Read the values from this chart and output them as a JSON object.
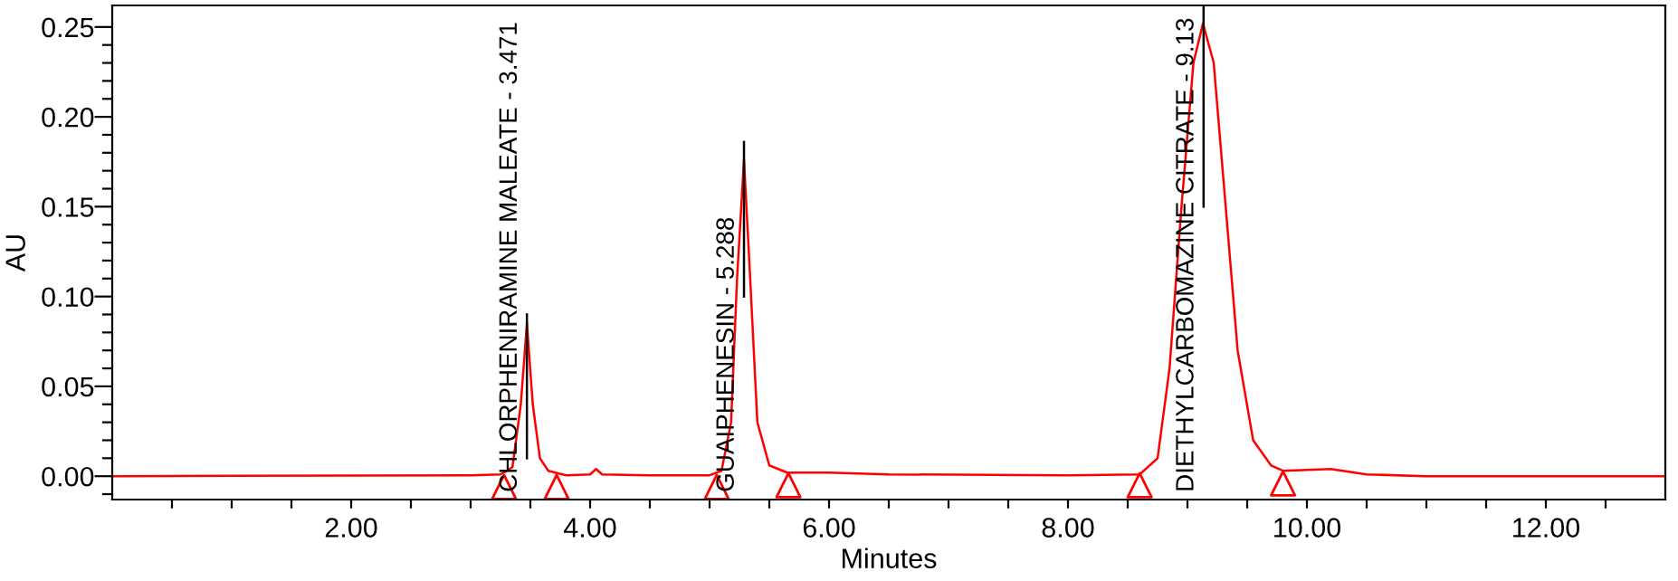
{
  "chart_data": {
    "type": "line",
    "xlabel": "Minutes",
    "ylabel": "AU",
    "xlim": [
      0,
      13
    ],
    "ylim": [
      -0.013,
      0.262
    ],
    "xticks": [
      {
        "value": 0.5,
        "label": null
      },
      {
        "value": 1.0,
        "label": null
      },
      {
        "value": 1.5,
        "label": null
      },
      {
        "value": 2.0,
        "label": "2.00"
      },
      {
        "value": 2.5,
        "label": null
      },
      {
        "value": 3.0,
        "label": null
      },
      {
        "value": 3.5,
        "label": null
      },
      {
        "value": 4.0,
        "label": "4.00"
      },
      {
        "value": 4.5,
        "label": null
      },
      {
        "value": 5.0,
        "label": null
      },
      {
        "value": 5.5,
        "label": null
      },
      {
        "value": 6.0,
        "label": "6.00"
      },
      {
        "value": 6.5,
        "label": null
      },
      {
        "value": 7.0,
        "label": null
      },
      {
        "value": 7.5,
        "label": null
      },
      {
        "value": 8.0,
        "label": "8.00"
      },
      {
        "value": 8.5,
        "label": null
      },
      {
        "value": 9.0,
        "label": null
      },
      {
        "value": 9.5,
        "label": null
      },
      {
        "value": 10.0,
        "label": "10.00"
      },
      {
        "value": 10.5,
        "label": null
      },
      {
        "value": 11.0,
        "label": null
      },
      {
        "value": 11.5,
        "label": null
      },
      {
        "value": 12.0,
        "label": "12.00"
      },
      {
        "value": 12.5,
        "label": null
      }
    ],
    "yticks": [
      {
        "value": -0.01,
        "label": null
      },
      {
        "value": 0.0,
        "label": "0.00"
      },
      {
        "value": 0.01,
        "label": null
      },
      {
        "value": 0.02,
        "label": null
      },
      {
        "value": 0.03,
        "label": null
      },
      {
        "value": 0.04,
        "label": null
      },
      {
        "value": 0.05,
        "label": "0.05"
      },
      {
        "value": 0.06,
        "label": null
      },
      {
        "value": 0.07,
        "label": null
      },
      {
        "value": 0.08,
        "label": null
      },
      {
        "value": 0.09,
        "label": null
      },
      {
        "value": 0.1,
        "label": "0.10"
      },
      {
        "value": 0.11,
        "label": null
      },
      {
        "value": 0.12,
        "label": null
      },
      {
        "value": 0.13,
        "label": null
      },
      {
        "value": 0.14,
        "label": null
      },
      {
        "value": 0.15,
        "label": "0.15"
      },
      {
        "value": 0.16,
        "label": null
      },
      {
        "value": 0.17,
        "label": null
      },
      {
        "value": 0.18,
        "label": null
      },
      {
        "value": 0.19,
        "label": null
      },
      {
        "value": 0.2,
        "label": "0.20"
      },
      {
        "value": 0.21,
        "label": null
      },
      {
        "value": 0.22,
        "label": null
      },
      {
        "value": 0.23,
        "label": null
      },
      {
        "value": 0.24,
        "label": null
      },
      {
        "value": 0.25,
        "label": "0.25"
      }
    ],
    "grid": false,
    "legend": false,
    "series": [
      {
        "color": "#ff0000",
        "x": [
          0.0,
          3.0,
          3.25,
          3.35,
          3.42,
          3.471,
          3.52,
          3.58,
          3.65,
          3.8,
          4.0,
          4.05,
          4.1,
          4.5,
          5.0,
          5.1,
          5.18,
          5.23,
          5.288,
          5.34,
          5.4,
          5.5,
          5.65,
          6.0,
          6.5,
          8.0,
          8.6,
          8.75,
          8.85,
          8.95,
          9.05,
          9.13,
          9.22,
          9.32,
          9.42,
          9.55,
          9.7,
          9.8,
          10.2,
          10.5,
          11.0,
          13.0
        ],
        "values": [
          0.0,
          0.0005,
          0.001,
          0.005,
          0.04,
          0.085,
          0.04,
          0.01,
          0.003,
          0.0005,
          0.001,
          0.004,
          0.001,
          0.0005,
          0.0005,
          0.003,
          0.03,
          0.11,
          0.176,
          0.11,
          0.03,
          0.006,
          0.002,
          0.002,
          0.001,
          0.0005,
          0.001,
          0.01,
          0.06,
          0.15,
          0.23,
          0.252,
          0.23,
          0.15,
          0.07,
          0.02,
          0.006,
          0.003,
          0.004,
          0.001,
          0.0,
          0.0
        ]
      },
      {
        "type": "scatter",
        "color": "#ff0000",
        "marker": "triangle",
        "x": [
          3.28,
          3.72,
          5.06,
          5.66,
          8.6,
          9.8
        ],
        "values": [
          -0.006,
          -0.006,
          -0.006,
          -0.005,
          -0.005,
          -0.004
        ]
      },
      {
        "type": "line",
        "color": "#000000",
        "x": [
          3.471,
          3.471
        ],
        "values": [
          0.01,
          0.09
        ]
      },
      {
        "type": "line",
        "color": "#000000",
        "x": [
          5.288,
          5.288
        ],
        "values": [
          0.1,
          0.186
        ]
      },
      {
        "type": "line",
        "color": "#000000",
        "x": [
          9.135,
          9.135
        ],
        "values": [
          0.15,
          0.262
        ]
      }
    ],
    "annotations": [
      "CHLORPHENIRAMINE MALEATE - 3.471",
      "GUAIPHENESIN - 5.288",
      "DIETHYLCARBOMAZINE CITRATE - 9.13"
    ]
  }
}
